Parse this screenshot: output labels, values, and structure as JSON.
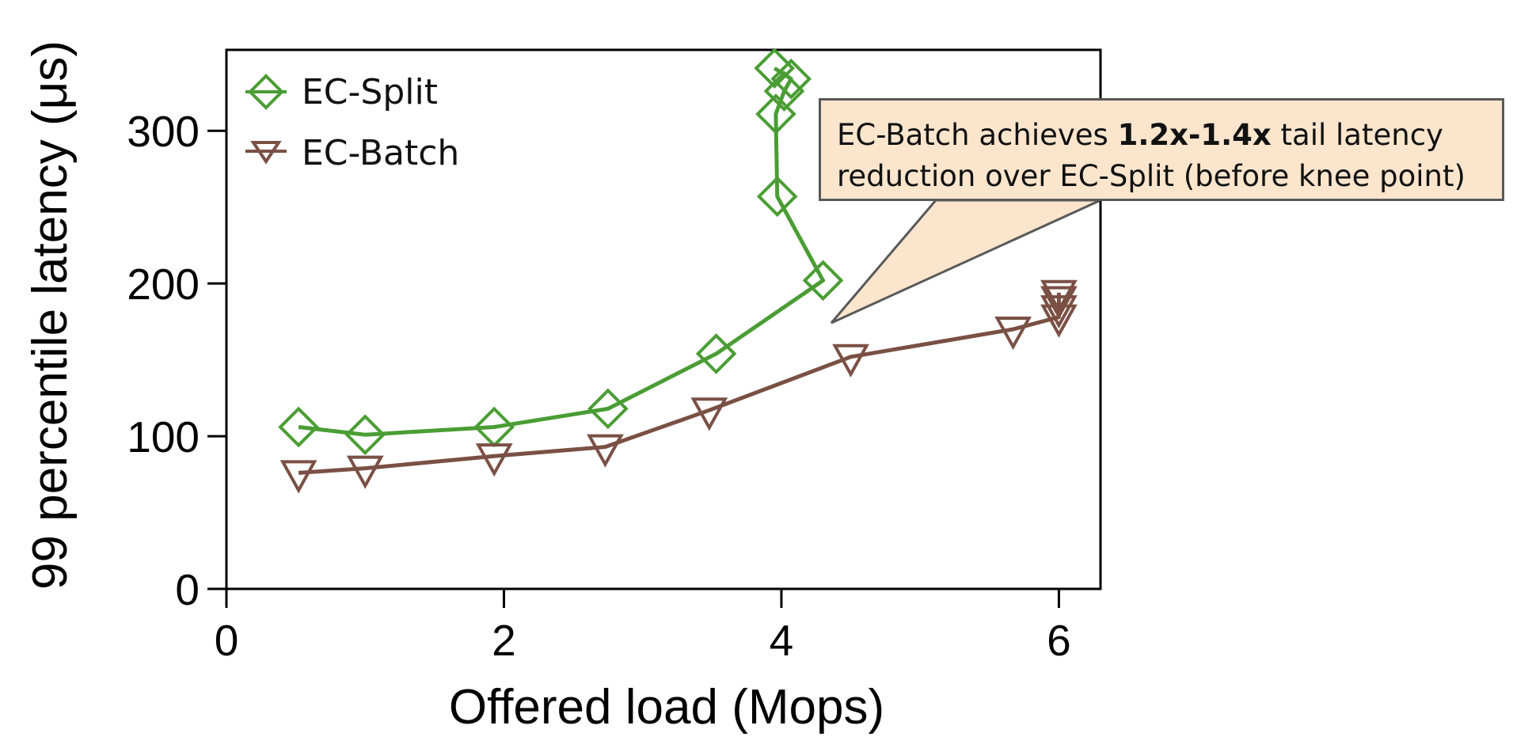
{
  "chart_data": {
    "type": "line",
    "xlabel": "Offered load (Mops)",
    "ylabel": "99 percentile latency (μs)",
    "xlim": [
      0,
      6.3
    ],
    "ylim": [
      0,
      353
    ],
    "x_ticks": [
      "0",
      "2",
      "4",
      "6"
    ],
    "y_ticks": [
      "0",
      "100",
      "200",
      "300"
    ],
    "grid": false,
    "legend_position": "top-left",
    "series": [
      {
        "name": "EC-Split",
        "marker": "diamond",
        "color": "#4a9d34",
        "points": [
          {
            "x": 0.52,
            "y": 106
          },
          {
            "x": 1.0,
            "y": 101
          },
          {
            "x": 1.93,
            "y": 106
          },
          {
            "x": 2.75,
            "y": 118
          },
          {
            "x": 3.53,
            "y": 154
          },
          {
            "x": 4.3,
            "y": 202
          },
          {
            "x": 3.97,
            "y": 257
          },
          {
            "x": 3.96,
            "y": 311
          },
          {
            "x": 4.02,
            "y": 326
          },
          {
            "x": 4.07,
            "y": 334
          },
          {
            "x": 3.95,
            "y": 341
          }
        ]
      },
      {
        "name": "EC-Batch",
        "marker": "triangle-down",
        "color": "#7a5045",
        "points": [
          {
            "x": 0.52,
            "y": 76
          },
          {
            "x": 1.0,
            "y": 79
          },
          {
            "x": 1.93,
            "y": 87
          },
          {
            "x": 2.73,
            "y": 93
          },
          {
            "x": 3.48,
            "y": 117
          },
          {
            "x": 4.5,
            "y": 152
          },
          {
            "x": 5.67,
            "y": 170
          },
          {
            "x": 6.0,
            "y": 178
          },
          {
            "x": 6.0,
            "y": 184
          },
          {
            "x": 6.0,
            "y": 190
          },
          {
            "x": 6.0,
            "y": 194
          }
        ]
      }
    ]
  },
  "annotation": {
    "text_before": "EC-Batch achieves ",
    "text_bold": "1.2x-1.4x",
    "text_after": " tail latency",
    "line2": "reduction over EC-Split (before knee point)"
  }
}
